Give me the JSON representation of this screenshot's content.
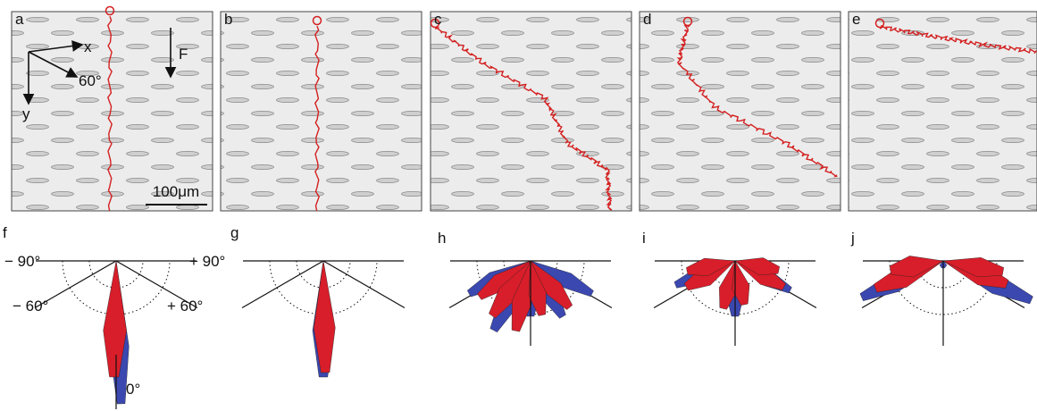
{
  "panels": [
    {
      "label": "a"
    },
    {
      "label": "b"
    },
    {
      "label": "c"
    },
    {
      "label": "d"
    },
    {
      "label": "e"
    }
  ],
  "axes": {
    "x": "x",
    "y": "y",
    "angle": "60°"
  },
  "force": "F",
  "scale_bar": "100μm",
  "rose_panels": [
    {
      "label": "f"
    },
    {
      "label": "g"
    },
    {
      "label": "h"
    },
    {
      "label": "i"
    },
    {
      "label": "j"
    }
  ],
  "rose_labels": {
    "minus_90": "− 90°",
    "plus_90": "+ 90°",
    "minus_60": "− 60°",
    "plus_60": "+ 60°",
    "zero": "0°"
  }
}
